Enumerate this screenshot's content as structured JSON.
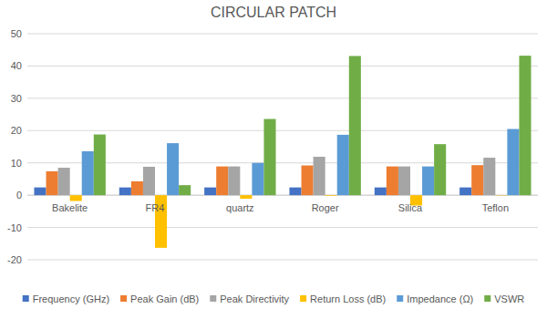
{
  "chart_data": {
    "type": "bar",
    "title": "CIRCULAR PATCH",
    "categories": [
      "Bakelite",
      "FR4",
      "quartz",
      "Roger",
      "Silica",
      "Teflon"
    ],
    "series": [
      {
        "name": "Frequency (GHz)",
        "color": "#4472c4",
        "values": [
          2.4,
          2.4,
          2.4,
          2.4,
          2.4,
          2.4
        ]
      },
      {
        "name": "Peak Gain (dB)",
        "color": "#ed7d31",
        "values": [
          7.4,
          4.3,
          8.9,
          9.2,
          8.9,
          9.3
        ]
      },
      {
        "name": "Peak Directivity",
        "color": "#a5a5a5",
        "values": [
          8.5,
          8.8,
          8.9,
          11.9,
          8.9,
          11.6
        ]
      },
      {
        "name": "Return Loss (dB)",
        "color": "#ffc000",
        "values": [
          -1.8,
          -16.3,
          -1.1,
          -0.2,
          -3.2,
          -0.1
        ]
      },
      {
        "name": "Impedance (Ω)",
        "color": "#5b9bd5",
        "values": [
          13.6,
          16.1,
          10.0,
          18.7,
          8.9,
          20.5
        ]
      },
      {
        "name": "VSWR",
        "color": "#70ad47",
        "values": [
          18.8,
          3.1,
          23.6,
          43.1,
          15.8,
          43.2
        ]
      }
    ],
    "ylim": [
      -20,
      50
    ],
    "yticks": [
      -20,
      -10,
      0,
      10,
      20,
      30,
      40,
      50
    ],
    "grid": true,
    "legend": "bottom"
  }
}
